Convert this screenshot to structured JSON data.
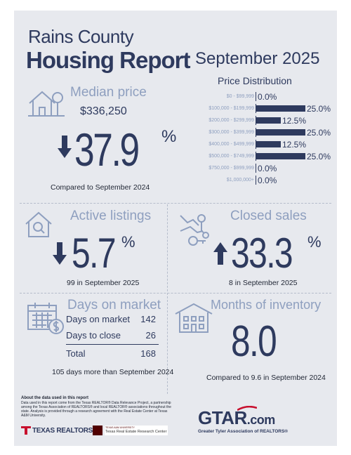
{
  "header": {
    "title_line1": "Rains County",
    "title_line2": "Housing Report",
    "month": "September 2025"
  },
  "price_distribution": {
    "title": "Price Distribution",
    "rows": [
      {
        "range": "$0 - $99,999",
        "pct": "0.0%",
        "value": 0.0
      },
      {
        "range": "$100,000 - $199,999",
        "pct": "25.0%",
        "value": 25.0
      },
      {
        "range": "$200,000 - $299,999",
        "pct": "12.5%",
        "value": 12.5
      },
      {
        "range": "$300,000 - $399,999",
        "pct": "25.0%",
        "value": 25.0
      },
      {
        "range": "$400,000 - $499,999",
        "pct": "12.5%",
        "value": 12.5
      },
      {
        "range": "$500,000 - $749,999",
        "pct": "25.0%",
        "value": 25.0
      },
      {
        "range": "$750,000 - $999,999",
        "pct": "0.0%",
        "value": 0.0
      },
      {
        "range": "$1,000,000+",
        "pct": "0.0%",
        "value": 0.0
      }
    ]
  },
  "median_price": {
    "label": "Median price",
    "value": "$336,250",
    "change": "37.9",
    "unit": "%",
    "direction": "down",
    "note": "Compared to September 2024"
  },
  "active_listings": {
    "label": "Active listings",
    "change": "5.7",
    "unit": "%",
    "direction": "down",
    "note": "99 in September 2025"
  },
  "closed_sales": {
    "label": "Closed sales",
    "change": "33.3",
    "unit": "%",
    "direction": "up",
    "note": "8 in September 2025"
  },
  "days_on_market": {
    "label": "Days on market",
    "rows": [
      {
        "label": "Days on market",
        "value": "142"
      },
      {
        "label": "Days to close",
        "value": "26"
      },
      {
        "label": "Total",
        "value": "168"
      }
    ],
    "note": "105 days more than September 2024"
  },
  "months_inventory": {
    "label": "Months of inventory",
    "value": "8.0",
    "note": "Compared to 9.6 in September 2024"
  },
  "footer": {
    "about_title": "About the data used in this report",
    "about_text": "Data used in this report come from the Texas REALTOR® Data Relevance Project, a partnership among the Texas Association of REALTORS® and local REALTOR® associations throughout the state. Analysis is provided through a research agreement with the Real Estate Center at Texas A&M University.",
    "texas_realtors": "TEXAS REALTORS",
    "tamu_small": "TEXAS A&M UNIVERSITY",
    "tamu_center": "Texas Real Estate Research Center",
    "gtar_logo": "GTAR",
    "gtar_dotcom": ".com",
    "gtar_tagline": "Greater Tyler Association of REALTORS®"
  },
  "colors": {
    "navy": "#2e3a5e",
    "light_blue": "#8e9fbf",
    "background": "#e7e9ee",
    "red": "#c8102e",
    "maroon": "#500000"
  }
}
